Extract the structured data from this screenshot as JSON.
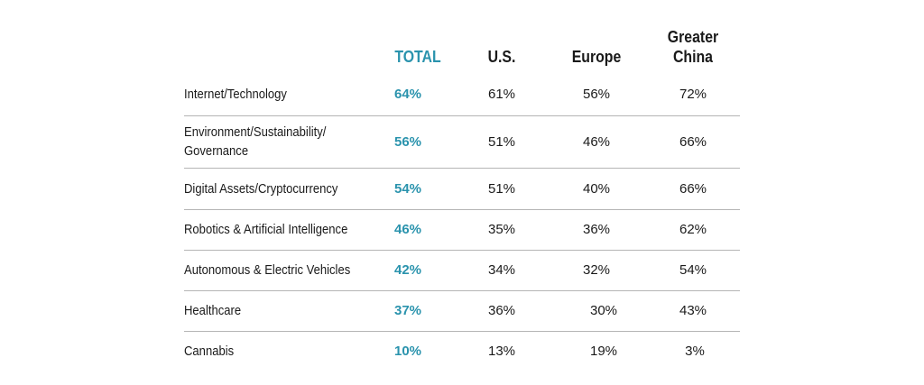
{
  "chart_data": {
    "type": "table",
    "columns": [
      "TOTAL",
      "U.S.",
      "Europe",
      "Greater\nChina"
    ],
    "rows": [
      {
        "category": "Internet/Technology",
        "values": [
          "64%",
          "61%",
          "56%",
          "72%"
        ]
      },
      {
        "category": "Environment/Sustainability/\nGovernance",
        "values": [
          "56%",
          "51%",
          "46%",
          "66%"
        ]
      },
      {
        "category": "Digital Assets/Cryptocurrency",
        "values": [
          "54%",
          "51%",
          "40%",
          "66%"
        ]
      },
      {
        "category": "Robotics & Artificial Intelligence",
        "values": [
          "46%",
          "35%",
          "36%",
          "62%"
        ]
      },
      {
        "category": "Autonomous & Electric Vehicles",
        "values": [
          "42%",
          "34%",
          "32%",
          "54%"
        ]
      },
      {
        "category": "Healthcare",
        "values": [
          "37%",
          "36%",
          "30%",
          "43%"
        ]
      },
      {
        "category": "Cannabis",
        "values": [
          "10%",
          "13%",
          "19%",
          "3%"
        ]
      }
    ]
  },
  "colors": {
    "accent": "#2a93ad",
    "text": "#1a1a1a",
    "rule": "#b5b5b5"
  }
}
